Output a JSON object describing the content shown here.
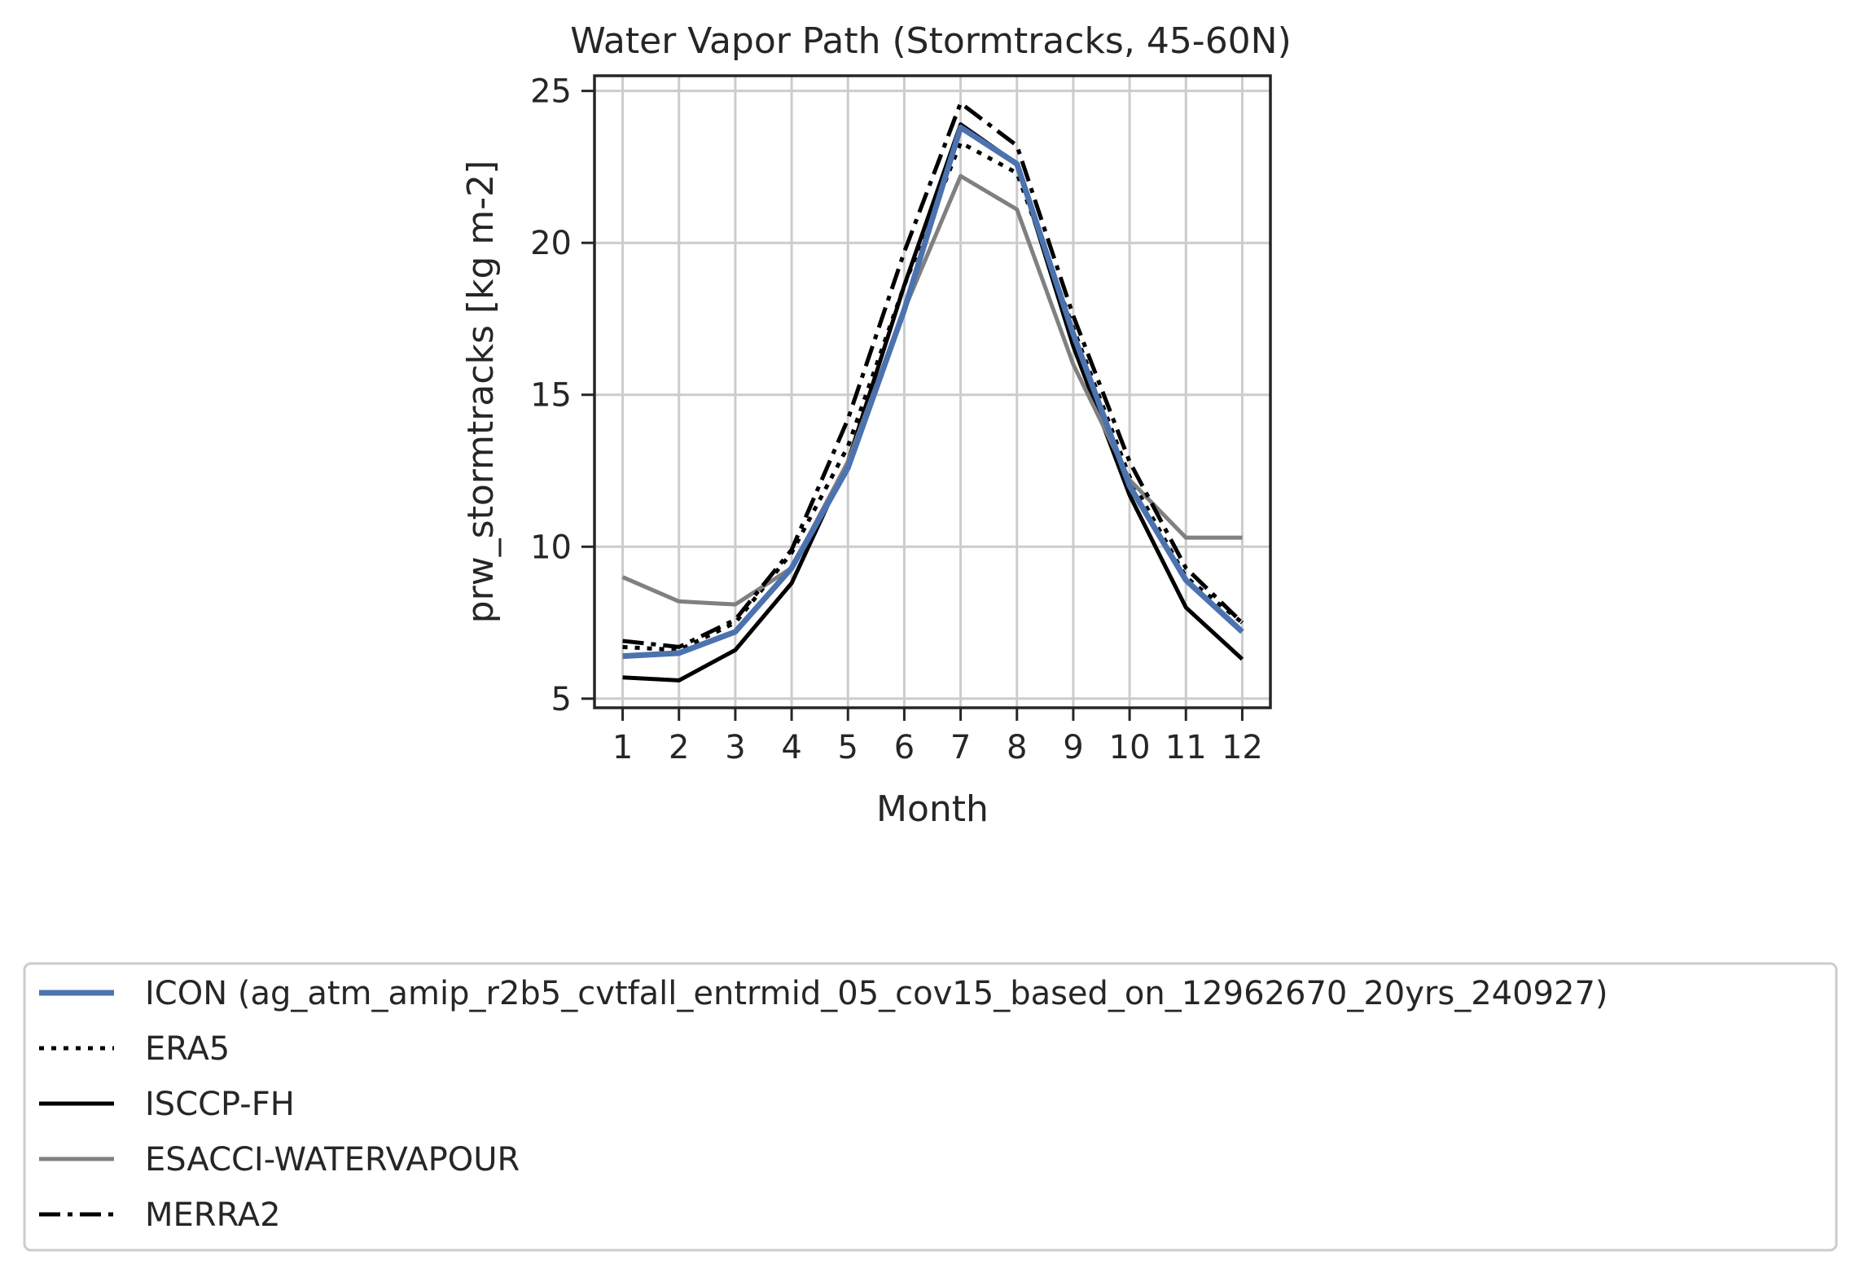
{
  "chart_data": {
    "type": "line",
    "title": "Water Vapor Path (Stormtracks, 45-60N)",
    "xlabel": "Month",
    "ylabel": "prw_stormtracks [kg m-2]",
    "x": [
      1,
      2,
      3,
      4,
      5,
      6,
      7,
      8,
      9,
      10,
      11,
      12
    ],
    "xticks": [
      "1",
      "2",
      "3",
      "4",
      "5",
      "6",
      "7",
      "8",
      "9",
      "10",
      "11",
      "12"
    ],
    "yticks": [
      5,
      10,
      15,
      20,
      25
    ],
    "xlim": [
      0.5,
      12.5
    ],
    "ylim": [
      4.7,
      25.5
    ],
    "grid": true,
    "legend_position": "bottom",
    "series": [
      {
        "name": "ICON (ag_atm_amip_r2b5_cvtfall_entrmid_05_cov15_based_on_12962670_20yrs_240927)",
        "color": "#4c72b0",
        "style": "solid",
        "width": 7,
        "values": [
          6.4,
          6.5,
          7.2,
          9.3,
          12.6,
          17.8,
          23.8,
          22.6,
          17.0,
          12.0,
          8.9,
          7.2
        ]
      },
      {
        "name": "ERA5",
        "color": "#000000",
        "style": "dotted",
        "width": 5,
        "values": [
          6.7,
          6.6,
          7.5,
          9.8,
          13.3,
          18.6,
          23.3,
          22.3,
          17.2,
          12.3,
          9.0,
          7.5
        ]
      },
      {
        "name": "ISCCP-FH",
        "color": "#000000",
        "style": "solid",
        "width": 5,
        "values": [
          5.7,
          5.6,
          6.6,
          8.8,
          12.8,
          18.6,
          23.9,
          22.6,
          16.6,
          11.7,
          8.0,
          6.3
        ]
      },
      {
        "name": "ESACCI-WATERVAPOUR",
        "color": "#808080",
        "style": "solid",
        "width": 5,
        "values": [
          9.0,
          8.2,
          8.1,
          9.3,
          12.8,
          17.8,
          22.2,
          21.1,
          16.0,
          12.2,
          10.3,
          10.3
        ]
      },
      {
        "name": "MERRA2",
        "color": "#000000",
        "style": "dashdot",
        "width": 5,
        "values": [
          6.9,
          6.7,
          7.6,
          9.9,
          14.2,
          19.7,
          24.6,
          23.2,
          17.6,
          12.8,
          9.3,
          7.5
        ]
      }
    ]
  }
}
